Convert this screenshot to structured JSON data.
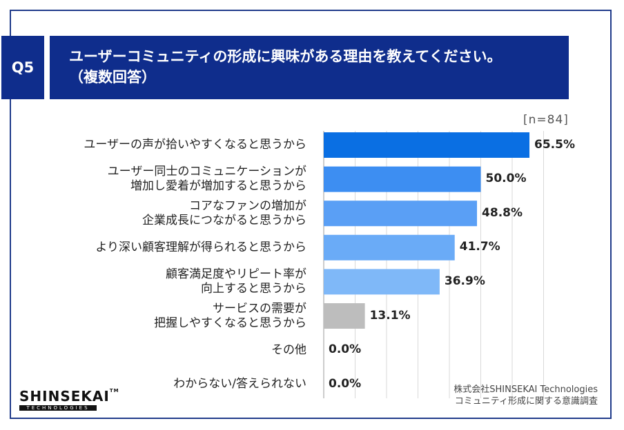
{
  "header": {
    "question_id": "Q5",
    "title_line1": "ユーザーコミュニティの形成に興味がある理由を教えてください。",
    "title_line2": "（複数回答）"
  },
  "sample_size": "[n=84]",
  "chart_data": {
    "type": "bar",
    "orientation": "horizontal",
    "title": "ユーザーコミュニティの形成に興味がある理由を教えてください。（複数回答）",
    "categories": [
      [
        "ユーザーの声が拾いやすくなると思うから"
      ],
      [
        "ユーザー同士のコミュニケーションが",
        "増加し愛着が増加すると思うから"
      ],
      [
        "コアなファンの増加が",
        "企業成長につながると思うから"
      ],
      [
        "より深い顧客理解が得られると思うから"
      ],
      [
        "顧客満足度やリピート率が",
        "向上すると思うから"
      ],
      [
        "サービスの需要が",
        "把握しやすくなると思うから"
      ],
      [
        "その他"
      ],
      [
        "わからない/答えられない"
      ]
    ],
    "values": [
      65.5,
      50.0,
      48.8,
      41.7,
      36.9,
      13.1,
      0.0,
      0.0
    ],
    "value_labels": [
      "65.5%",
      "50.0%",
      "48.8%",
      "41.7%",
      "36.9%",
      "13.1%",
      "0.0%",
      "0.0%"
    ],
    "bar_colors": [
      "#0a6fe3",
      "#3d8ef2",
      "#5a9ff5",
      "#6aabf7",
      "#7fb8f8",
      "#bdbdbd",
      "#bdbdbd",
      "#bdbdbd"
    ],
    "xlim": [
      0,
      70
    ],
    "grid": true
  },
  "brand": {
    "logo_text": "SHINSEKAI",
    "logo_tm": "TM",
    "logo_sub": "TECHNOLOGIES"
  },
  "source": {
    "line1": "株式会社SHINSEKAI Technologies",
    "line2": "コミュニティ形成に関する意識調査"
  }
}
